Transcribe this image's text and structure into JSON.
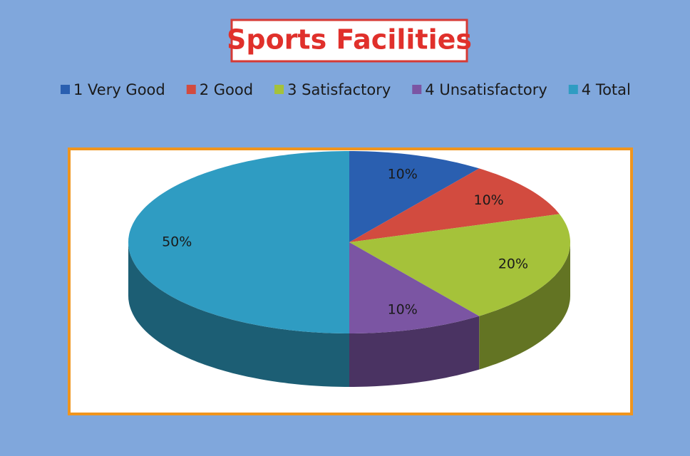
{
  "chart_data": {
    "type": "pie",
    "title": "Sports Facilities",
    "categories": [
      "1 Very Good",
      "2 Good",
      "3 Satisfactory",
      "4 Unsatisfactory",
      "4 Total"
    ],
    "values": [
      10,
      10,
      20,
      10,
      50
    ],
    "value_labels": [
      "10%",
      "10%",
      "20%",
      "10%",
      "50%"
    ],
    "colors": [
      "#2a5fb0",
      "#d24b3f",
      "#a5c23a",
      "#7b55a3",
      "#2f9cc2"
    ],
    "legend": "top"
  }
}
